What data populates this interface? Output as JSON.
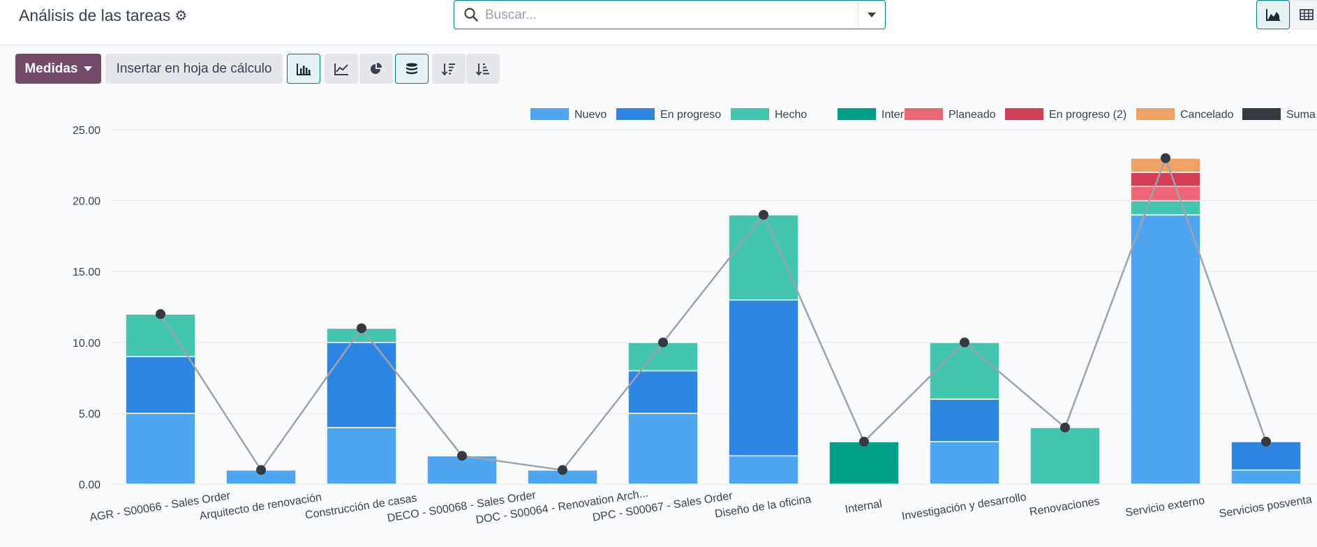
{
  "header": {
    "title": "Análisis de las tareas",
    "search_placeholder": "Buscar..."
  },
  "toolbar": {
    "measures_label": "Medidas",
    "insert_label": "Insertar en hoja de cálculo"
  },
  "icons": [
    "cog-icon",
    "search-icon",
    "chevron-down-icon",
    "graph-view-icon",
    "pivot-view-icon",
    "bar-chart-icon",
    "line-chart-icon",
    "pie-chart-icon",
    "stacked-icon",
    "sort-descending-icon",
    "sort-ascending-icon"
  ],
  "colors": {
    "brand": "#714b67",
    "accent": "#017e84",
    "Nuevo": "#4ea6f0",
    "En progreso": "#2f86e2",
    "Hecho": "#43c5ae",
    "Interno": "#00a088",
    "Planeado": "#ec6678",
    "En progreso (2)": "#d33f56",
    "Cancelado": "#f0a265",
    "Suma": "#343a40"
  },
  "chart_data": {
    "type": "bar",
    "stacked": true,
    "categories": [
      "AGR - S00066 - Sales Order",
      "Arquitecto de renovación",
      "Construcción de casas",
      "DECO - S00068 - Sales Order",
      "DOC - S00064 - Renovation Arch...",
      "DPC - S00067 - Sales Order",
      "Diseño de la oficina",
      "Internal",
      "Investigación y desarrollo",
      "Renovaciones",
      "Servicio externo",
      "Servicios posventa"
    ],
    "series": [
      {
        "name": "Nuevo",
        "type": "bar",
        "values": [
          5,
          1,
          4,
          2,
          1,
          5,
          2,
          0,
          3,
          0,
          19,
          1
        ]
      },
      {
        "name": "En progreso",
        "type": "bar",
        "values": [
          4,
          0,
          6,
          0,
          0,
          3,
          11,
          0,
          3,
          0,
          0,
          2
        ]
      },
      {
        "name": "Hecho",
        "type": "bar",
        "values": [
          3,
          0,
          1,
          0,
          0,
          2,
          6,
          0,
          4,
          4,
          1,
          0
        ]
      },
      {
        "name": "Interno",
        "type": "bar",
        "values": [
          0,
          0,
          0,
          0,
          0,
          0,
          0,
          3,
          0,
          0,
          0,
          0
        ]
      },
      {
        "name": "Planeado",
        "type": "bar",
        "values": [
          0,
          0,
          0,
          0,
          0,
          0,
          0,
          0,
          0,
          0,
          1,
          0
        ]
      },
      {
        "name": "En progreso (2)",
        "type": "bar",
        "values": [
          0,
          0,
          0,
          0,
          0,
          0,
          0,
          0,
          0,
          0,
          1,
          0
        ]
      },
      {
        "name": "Cancelado",
        "type": "bar",
        "values": [
          0,
          0,
          0,
          0,
          0,
          0,
          0,
          0,
          0,
          0,
          1,
          0
        ]
      },
      {
        "name": "Suma",
        "type": "line",
        "values": [
          12,
          1,
          11,
          2,
          1,
          10,
          19,
          3,
          10,
          4,
          23,
          3
        ]
      }
    ],
    "ylim": [
      0,
      25
    ],
    "yticks": [
      "0.00",
      "5.00",
      "10.00",
      "15.00",
      "20.00",
      "25.00"
    ],
    "grid": true,
    "legend": "top-right"
  }
}
